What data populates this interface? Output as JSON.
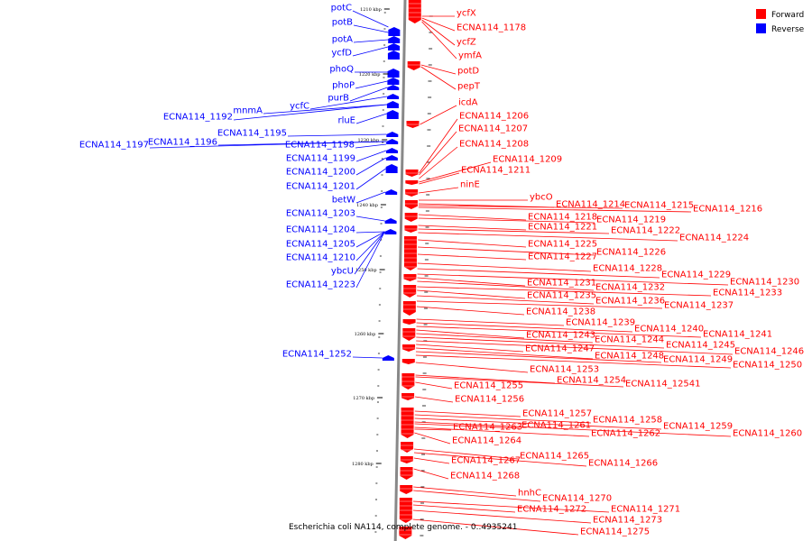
{
  "caption": "Escherichia coli NA114, complete genome. - 0..4935241",
  "legend": [
    {
      "label": "Forward",
      "color": "#ff0000"
    },
    {
      "label": "Reverse",
      "color": "#0000ff"
    }
  ],
  "colors": {
    "forward": "#ff0000",
    "reverse": "#0000ff",
    "axis": "#888888"
  },
  "ticks": [
    "1210 kbp",
    "1220 kbp",
    "1230 kbp",
    "1240 kbp",
    "1250 kbp",
    "1260 kbp",
    "1270 kbp",
    "1280 kbp"
  ],
  "reverse_labels": [
    "potC",
    "potB",
    "potA",
    "ycfD",
    "phoQ",
    "phoP",
    "purB",
    "ycfC",
    "mnmA",
    "ECNA114_1192",
    "rluE",
    "ECNA114_1195",
    "ECNA114_1196",
    "ECNA114_1197",
    "ECNA114_1198",
    "ECNA114_1199",
    "ECNA114_1200",
    "ECNA114_1201",
    "betW",
    "ECNA114_1203",
    "ECNA114_1204",
    "ECNA114_1205",
    "ECNA114_1210",
    "ybcU",
    "ECNA114_1223",
    "ECNA114_1252"
  ],
  "forward_labels": [
    "ycfX",
    "ECNA114_1178",
    "ycfZ",
    "ymfA",
    "potD",
    "pepT",
    "icdA",
    "ECNA114_1206",
    "ECNA114_1207",
    "ECNA114_1208",
    "ECNA114_1209",
    "ECNA114_1211",
    "ninE",
    "ybcO",
    "ECNA114_1214",
    "ECNA114_1215",
    "ECNA114_1216",
    "ECNA114_1218",
    "ECNA114_1219",
    "ECNA114_1221",
    "ECNA114_1222",
    "ECNA114_1224",
    "ECNA114_1225",
    "ECNA114_1226",
    "ECNA114_1227",
    "ECNA114_1228",
    "ECNA114_1229",
    "ECNA114_1230",
    "ECNA114_1231",
    "ECNA114_1232",
    "ECNA114_1233",
    "ECNA114_1235",
    "ECNA114_1236",
    "ECNA114_1237",
    "ECNA114_1238",
    "ECNA114_1239",
    "ECNA114_1240",
    "ECNA114_1241",
    "ECNA114_1243",
    "ECNA114_1244",
    "ECNA114_1245",
    "ECNA114_1246",
    "ECNA114_1247",
    "ECNA114_1248",
    "ECNA114_1249",
    "ECNA114_1250",
    "ECNA114_1253",
    "ECNA114_1254",
    "ECNA114_12541",
    "ECNA114_1255",
    "ECNA114_1256",
    "ECNA114_1257",
    "ECNA114_1258",
    "ECNA114_1259",
    "ECNA114_1260",
    "ECNA114_1261",
    "ECNA114_1262",
    "ECNA114_1263",
    "ECNA114_1264",
    "ECNA114_1265",
    "ECNA114_1266",
    "ECNA114_1267",
    "ECNA114_1268",
    "hnhC",
    "ECNA114_1270",
    "ECNA114_1271",
    "ECNA114_1272",
    "ECNA114_1273",
    "ECNA114_1275"
  ]
}
